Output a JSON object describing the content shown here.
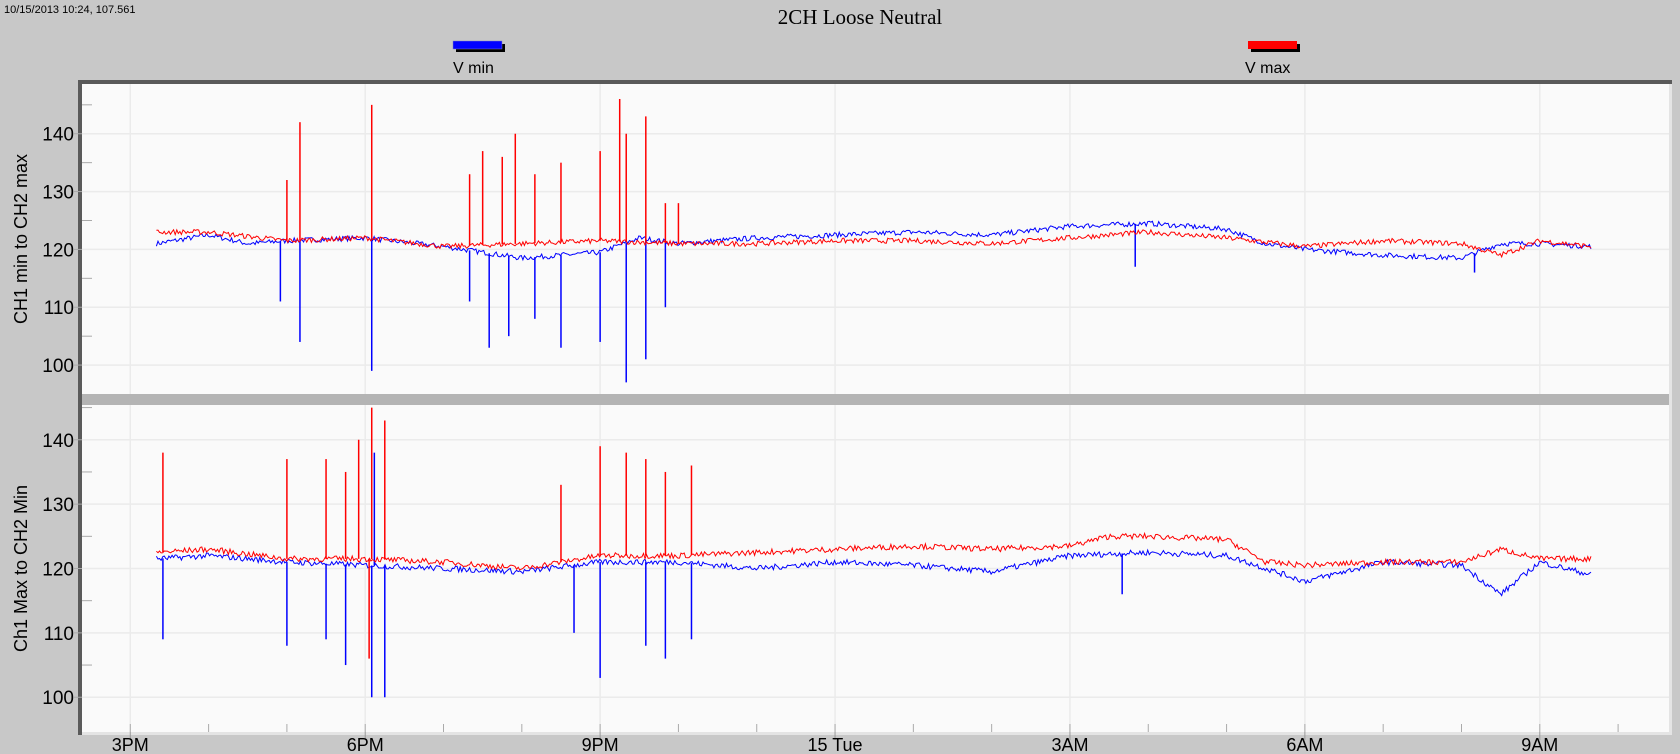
{
  "header": {
    "cursor_readout": "10/15/2013 10:24, 107.561",
    "title": "2CH Loose Neutral"
  },
  "legend": [
    {
      "name": "V min",
      "color": "#0000ff"
    },
    {
      "name": "V max",
      "color": "#ff0000"
    }
  ],
  "chart_data": [
    {
      "type": "line",
      "ylabel": "CH1 min to CH2 max",
      "ylim": [
        95,
        148.6
      ],
      "yticks": [
        100,
        110,
        120,
        130,
        140
      ],
      "xlim": [
        "10/14 14:23",
        "10/15 10:39"
      ],
      "grid": true,
      "series": [
        {
          "name": "V min",
          "color": "#0000ff",
          "points": [
            [
              "10/14 15:20",
              121
            ],
            [
              "10/14 16:00",
              122.5
            ],
            [
              "10/14 16:30",
              121
            ],
            [
              "10/14 17:00",
              121.5
            ],
            [
              "10/14 18:00",
              122
            ],
            [
              "10/14 19:00",
              120.5
            ],
            [
              "10/14 20:00",
              118.5
            ],
            [
              "10/14 21:00",
              119.5
            ],
            [
              "10/14 21:30",
              122
            ],
            [
              "10/14 22:00",
              121
            ],
            [
              "10/14 23:00",
              122
            ],
            [
              "10/15 00:00",
              122.5
            ],
            [
              "10/15 01:00",
              123
            ],
            [
              "10/15 02:00",
              122.5
            ],
            [
              "10/15 03:00",
              124
            ],
            [
              "10/15 04:00",
              124.5
            ],
            [
              "10/15 05:00",
              123.5
            ],
            [
              "10/15 05:30",
              121
            ],
            [
              "10/15 06:00",
              120
            ],
            [
              "10/15 07:00",
              119
            ],
            [
              "10/15 08:00",
              118.5
            ],
            [
              "10/15 08:30",
              121
            ],
            [
              "10/15 09:00",
              121
            ],
            [
              "10/15 09:40",
              120.5
            ]
          ],
          "spikes": [
            [
              "10/14 16:55",
              111
            ],
            [
              "10/14 17:10",
              104
            ],
            [
              "10/14 18:05",
              99
            ],
            [
              "10/14 19:20",
              111
            ],
            [
              "10/14 19:35",
              103
            ],
            [
              "10/14 19:50",
              105
            ],
            [
              "10/14 20:10",
              108
            ],
            [
              "10/14 20:30",
              103
            ],
            [
              "10/14 21:00",
              104
            ],
            [
              "10/14 21:20",
              97
            ],
            [
              "10/14 21:35",
              101
            ],
            [
              "10/14 21:50",
              110
            ],
            [
              "10/15 03:50",
              117
            ],
            [
              "10/15 08:10",
              116
            ]
          ]
        },
        {
          "name": "V max",
          "color": "#ff0000",
          "points": [
            [
              "10/14 15:20",
              123
            ],
            [
              "10/14 16:00",
              123
            ],
            [
              "10/14 17:00",
              121.5
            ],
            [
              "10/14 18:00",
              122
            ],
            [
              "10/14 19:00",
              120.5
            ],
            [
              "10/14 20:00",
              121
            ],
            [
              "10/14 21:00",
              121.5
            ],
            [
              "10/14 22:00",
              121
            ],
            [
              "10/14 23:00",
              121
            ],
            [
              "10/15 00:00",
              121.5
            ],
            [
              "10/15 01:00",
              121.5
            ],
            [
              "10/15 02:00",
              121
            ],
            [
              "10/15 03:00",
              122
            ],
            [
              "10/15 04:00",
              123
            ],
            [
              "10/15 05:00",
              122
            ],
            [
              "10/15 06:00",
              120.5
            ],
            [
              "10/15 07:00",
              121.5
            ],
            [
              "10/15 08:00",
              121
            ],
            [
              "10/15 08:30",
              119
            ],
            [
              "10/15 09:00",
              121.5
            ],
            [
              "10/15 09:40",
              120.5
            ]
          ],
          "spikes": [
            [
              "10/14 17:00",
              132
            ],
            [
              "10/14 17:10",
              142
            ],
            [
              "10/14 18:05",
              145
            ],
            [
              "10/14 19:20",
              133
            ],
            [
              "10/14 19:30",
              137
            ],
            [
              "10/14 19:45",
              136
            ],
            [
              "10/14 19:55",
              140
            ],
            [
              "10/14 20:10",
              133
            ],
            [
              "10/14 20:30",
              135
            ],
            [
              "10/14 21:00",
              137
            ],
            [
              "10/14 21:15",
              146
            ],
            [
              "10/14 21:20",
              140
            ],
            [
              "10/14 21:35",
              143
            ],
            [
              "10/14 21:50",
              128
            ],
            [
              "10/14 22:00",
              128
            ]
          ]
        }
      ]
    },
    {
      "type": "line",
      "ylabel": "Ch1 Max to CH2 Min",
      "ylim": [
        94.6,
        145.4
      ],
      "yticks": [
        100,
        110,
        120,
        130,
        140
      ],
      "xlim": [
        "10/14 14:23",
        "10/15 10:39"
      ],
      "grid": true,
      "series": [
        {
          "name": "V min",
          "color": "#0000ff",
          "points": [
            [
              "10/14 15:20",
              121.5
            ],
            [
              "10/14 16:00",
              122
            ],
            [
              "10/14 17:00",
              121
            ],
            [
              "10/14 18:00",
              120.5
            ],
            [
              "10/14 19:00",
              120
            ],
            [
              "10/14 20:00",
              119.5
            ],
            [
              "10/14 21:00",
              121
            ],
            [
              "10/14 22:00",
              121
            ],
            [
              "10/14 23:00",
              120
            ],
            [
              "10/15 00:00",
              121
            ],
            [
              "10/15 01:00",
              120.5
            ],
            [
              "10/15 02:00",
              119.5
            ],
            [
              "10/15 03:00",
              122
            ],
            [
              "10/15 04:00",
              122.5
            ],
            [
              "10/15 05:00",
              122
            ],
            [
              "10/15 05:30",
              120
            ],
            [
              "10/15 06:00",
              118
            ],
            [
              "10/15 07:00",
              121
            ],
            [
              "10/15 08:00",
              120.5
            ],
            [
              "10/15 08:30",
              116
            ],
            [
              "10/15 09:00",
              121
            ],
            [
              "10/15 09:40",
              119
            ]
          ],
          "spikes": [
            [
              "10/14 15:25",
              109
            ],
            [
              "10/14 17:00",
              108
            ],
            [
              "10/14 17:30",
              109
            ],
            [
              "10/14 17:45",
              105
            ],
            [
              "10/14 18:05",
              100
            ],
            [
              "10/14 18:07",
              138
            ],
            [
              "10/14 18:15",
              100
            ],
            [
              "10/14 20:40",
              110
            ],
            [
              "10/14 21:00",
              103
            ],
            [
              "10/14 21:35",
              108
            ],
            [
              "10/14 21:50",
              106
            ],
            [
              "10/14 22:10",
              109
            ],
            [
              "10/15 03:40",
              116
            ]
          ]
        },
        {
          "name": "V max",
          "color": "#ff0000",
          "points": [
            [
              "10/14 15:20",
              122.5
            ],
            [
              "10/14 16:00",
              123
            ],
            [
              "10/14 17:00",
              121.5
            ],
            [
              "10/14 18:00",
              121.5
            ],
            [
              "10/14 19:00",
              121
            ],
            [
              "10/14 20:00",
              120
            ],
            [
              "10/14 21:00",
              122
            ],
            [
              "10/14 22:00",
              122
            ],
            [
              "10/14 23:00",
              122.5
            ],
            [
              "10/15 00:00",
              123
            ],
            [
              "10/15 01:00",
              123.5
            ],
            [
              "10/15 02:00",
              123
            ],
            [
              "10/15 03:00",
              123.5
            ],
            [
              "10/15 03:30",
              125
            ],
            [
              "10/15 04:00",
              125
            ],
            [
              "10/15 05:00",
              124.5
            ],
            [
              "10/15 05:30",
              121
            ],
            [
              "10/15 06:00",
              120.5
            ],
            [
              "10/15 07:00",
              121
            ],
            [
              "10/15 08:00",
              121
            ],
            [
              "10/15 08:30",
              123
            ],
            [
              "10/15 09:00",
              121.5
            ],
            [
              "10/15 09:40",
              121.5
            ]
          ],
          "spikes": [
            [
              "10/14 15:25",
              138
            ],
            [
              "10/14 17:00",
              137
            ],
            [
              "10/14 17:30",
              137
            ],
            [
              "10/14 17:45",
              135
            ],
            [
              "10/14 17:55",
              140
            ],
            [
              "10/14 18:03",
              106
            ],
            [
              "10/14 18:05",
              145
            ],
            [
              "10/14 18:15",
              143
            ],
            [
              "10/14 20:30",
              133
            ],
            [
              "10/14 21:00",
              139
            ],
            [
              "10/14 21:20",
              138
            ],
            [
              "10/14 21:35",
              137
            ],
            [
              "10/14 21:50",
              135
            ],
            [
              "10/14 22:10",
              136
            ]
          ]
        }
      ]
    }
  ],
  "xaxis": {
    "ticks": [
      {
        "time": "10/14 15:00",
        "label": "3PM"
      },
      {
        "time": "10/14 18:00",
        "label": "6PM"
      },
      {
        "time": "10/14 21:00",
        "label": "9PM"
      },
      {
        "time": "10/15 00:00",
        "label": "15 Tue"
      },
      {
        "time": "10/15 03:00",
        "label": "3AM"
      },
      {
        "time": "10/15 06:00",
        "label": "6AM"
      },
      {
        "time": "10/15 09:00",
        "label": "9AM"
      }
    ]
  }
}
